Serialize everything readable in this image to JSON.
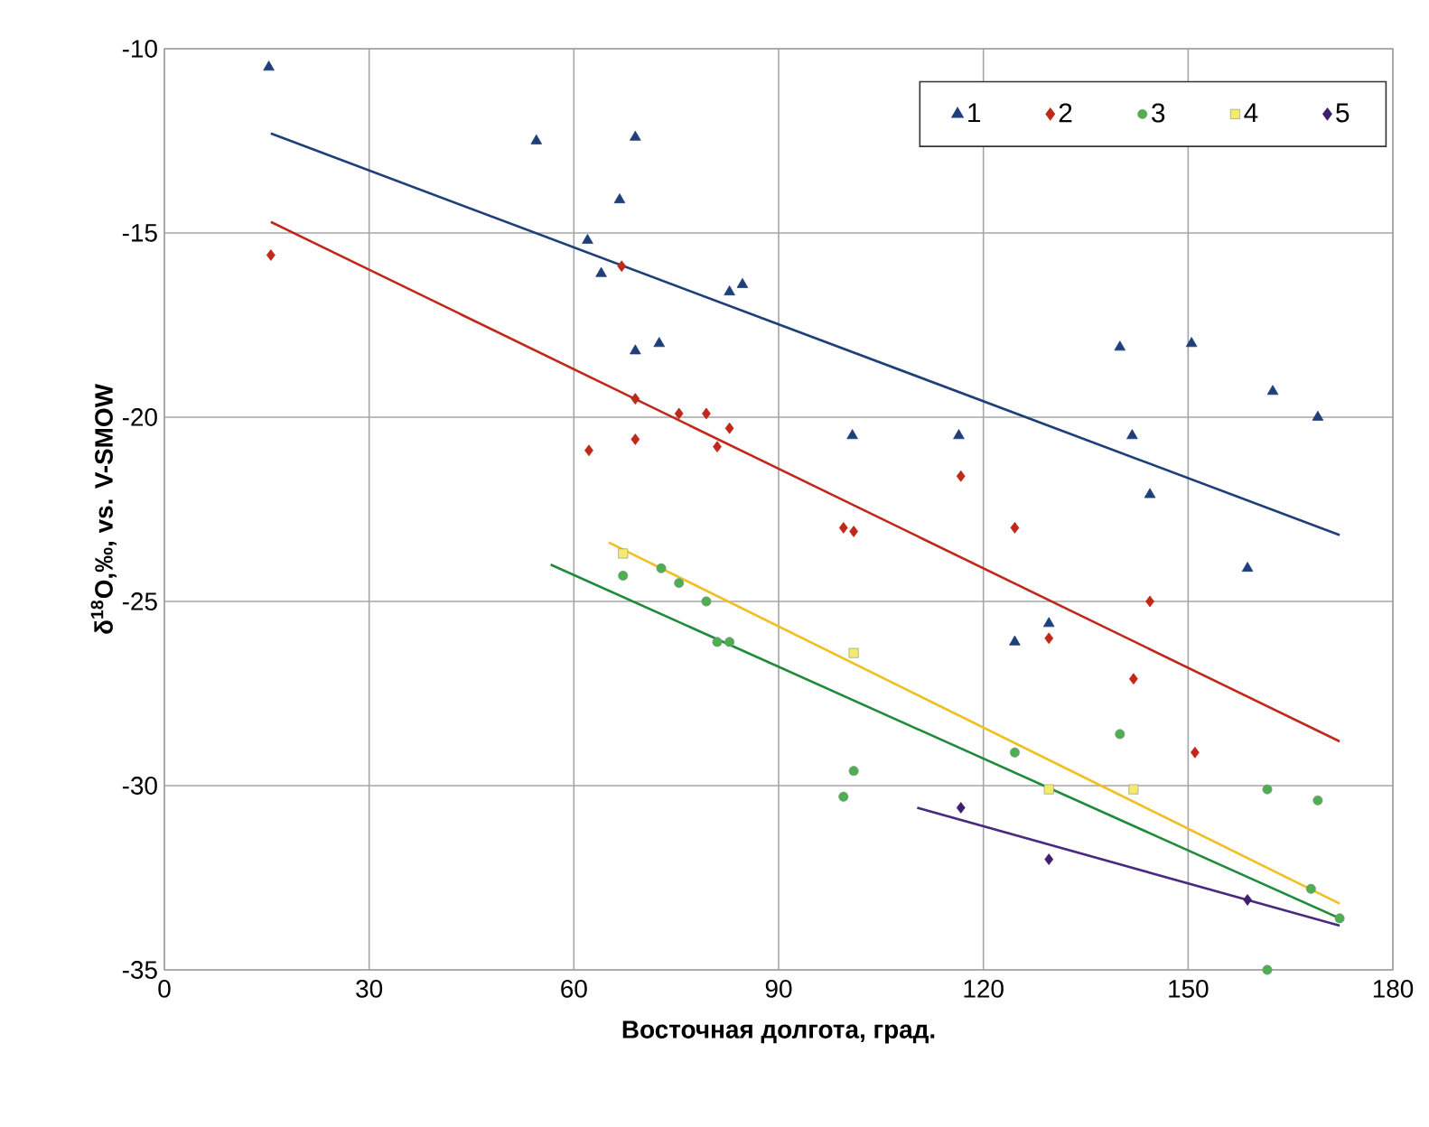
{
  "chart_data": {
    "type": "scatter",
    "xlabel": "Восточная долгота, град.",
    "ylabel": "δ$^{18}$O,‰, vs. V-SMOW",
    "xlim": [
      0,
      180
    ],
    "ylim": [
      -35,
      -10
    ],
    "xticks": [
      0,
      30,
      60,
      90,
      120,
      150,
      180
    ],
    "yticks": [
      -35,
      -30,
      -25,
      -20,
      -15,
      -10
    ],
    "grid": true,
    "legend": "top right",
    "series": [
      {
        "name": "1",
        "color": "#1f3f7a",
        "marker": "triangle",
        "x": [
          15.3,
          54.5,
          69,
          66.7,
          62,
          64,
          69,
          72.5,
          82.8,
          84.7,
          100.8,
          116.4,
          124.6,
          129.6,
          140,
          150.5,
          141.8,
          144.4,
          158.7,
          162.4,
          169
        ],
        "values": [
          -10.5,
          -12.5,
          -12.4,
          -14.1,
          -15.2,
          -16.1,
          -18.2,
          -18.0,
          -16.6,
          -16.4,
          -20.5,
          -20.5,
          -26.1,
          -25.6,
          -18.1,
          -18.0,
          -20.5,
          -22.1,
          -24.1,
          -19.3,
          -20.0
        ]
      },
      {
        "name": "2",
        "color": "#c0281a",
        "marker": "diamond",
        "x": [
          15.6,
          67,
          69,
          75.4,
          79.4,
          82.8,
          81,
          62.2,
          69,
          116.7,
          99.5,
          101,
          124.6,
          144.4,
          129.6,
          142,
          151
        ],
        "values": [
          -15.6,
          -15.9,
          -19.5,
          -19.9,
          -19.9,
          -20.3,
          -20.8,
          -20.9,
          -20.6,
          -21.6,
          -23.0,
          -23.1,
          -23.0,
          -25.0,
          -26.0,
          -27.1,
          -29.1
        ]
      },
      {
        "name": "3",
        "color": "#4caf50",
        "marker": "circle",
        "x": [
          67.2,
          72.8,
          75.4,
          79.4,
          81,
          82.8,
          101,
          99.5,
          124.6,
          140,
          161.6,
          169,
          168,
          172.2,
          161.6
        ],
        "values": [
          -24.3,
          -24.1,
          -24.5,
          -25.0,
          -26.1,
          -26.1,
          -29.6,
          -30.3,
          -29.1,
          -28.6,
          -30.1,
          -30.4,
          -32.8,
          -33.6,
          -35.0
        ]
      },
      {
        "name": "4",
        "color": "#f2ec6a",
        "marker": "square",
        "x": [
          67.2,
          101,
          129.6,
          142
        ],
        "values": [
          -23.7,
          -26.4,
          -30.1,
          -30.1
        ]
      },
      {
        "name": "5",
        "color": "#3f1f6f",
        "marker": "diamond",
        "x": [
          116.7,
          129.6,
          158.7
        ],
        "values": [
          -30.6,
          -32.0,
          -33.1
        ]
      },
      {
        "type": "line",
        "color": "#1f3f7a",
        "marker": "none",
        "x": [
          15.6,
          172.2
        ],
        "values": [
          -12.3,
          -23.2
        ]
      },
      {
        "type": "line",
        "color": "#c0281a",
        "marker": "none",
        "x": [
          15.6,
          172.2
        ],
        "values": [
          -14.7,
          -28.8
        ]
      },
      {
        "type": "line",
        "color": "#1e8a3a",
        "marker": "none",
        "x": [
          56.6,
          172.2
        ],
        "values": [
          -24.0,
          -33.6
        ]
      },
      {
        "type": "line",
        "color": "#f0c020",
        "marker": "none",
        "x": [
          65.1,
          172.2
        ],
        "values": [
          -23.4,
          -33.2
        ]
      },
      {
        "type": "line",
        "color": "#4a2a80",
        "marker": "none",
        "x": [
          110.3,
          172.2
        ],
        "values": [
          -30.6,
          -33.8
        ]
      }
    ]
  }
}
